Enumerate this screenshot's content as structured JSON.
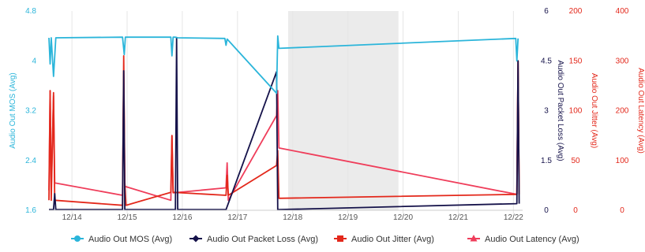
{
  "colors": {
    "mos": "#2bb5da",
    "packet_loss": "#15124a",
    "jitter": "#e3281b",
    "latency": "#ef3d5a",
    "band": "#ebebeb",
    "axis_text": "#555555"
  },
  "chart_data": {
    "type": "line",
    "title": "",
    "xlabel": "",
    "x_ticks": [
      "12/14",
      "12/15",
      "12/16",
      "12/17",
      "12/18",
      "12/19",
      "12/20",
      "12/21",
      "12/22"
    ],
    "x_range": [
      "12/13 14:00",
      "12/22 04:00"
    ],
    "shaded_band": [
      "12/17 22:00",
      "12/19 22:00"
    ],
    "grid": "vertical only",
    "legend_position": "bottom",
    "axes": {
      "mos": {
        "label": "Audio Out MOS (Avg)",
        "side": "left",
        "range": [
          1.6,
          4.8
        ],
        "ticks": [
          "1.6",
          "2.4",
          "3.2",
          "4",
          "4.8"
        ]
      },
      "packet_loss": {
        "label": "Audio Out Packet Loss (Avg)",
        "side": "right",
        "range": [
          0,
          6
        ],
        "ticks": [
          "0",
          "1.5",
          "3",
          "4.5",
          "6"
        ]
      },
      "jitter": {
        "label": "Audio Out Jitter (Avg)",
        "side": "right",
        "range": [
          0,
          200
        ],
        "ticks": [
          "0",
          "50",
          "100",
          "150",
          "200"
        ]
      },
      "latency": {
        "label": "Audio Out Latency (Avg)",
        "side": "right",
        "range": [
          0,
          400
        ],
        "ticks": [
          "0",
          "100",
          "200",
          "300",
          "400"
        ]
      }
    },
    "series": [
      {
        "name": "Audio Out MOS (Avg)",
        "axis": "mos",
        "color_key": "mos",
        "marker": "circle",
        "points": [
          [
            "12/13 14:00",
            4.37
          ],
          [
            "12/13 14:30",
            3.95
          ],
          [
            "12/13 15:00",
            4.37
          ],
          [
            "12/13 16:00",
            3.75
          ],
          [
            "12/13 17:00",
            4.37
          ],
          [
            "12/14 22:00",
            4.38
          ],
          [
            "12/14 22:45",
            4.1
          ],
          [
            "12/14 23:15",
            4.38
          ],
          [
            "12/15 19:00",
            4.38
          ],
          [
            "12/15 19:30",
            4.08
          ],
          [
            "12/15 20:00",
            4.38
          ],
          [
            "12/15 21:00",
            4.38
          ],
          [
            "12/15 22:00",
            4.37
          ],
          [
            "12/16 18:30",
            4.36
          ],
          [
            "12/16 19:00",
            4.25
          ],
          [
            "12/16 19:30",
            4.35
          ],
          [
            "12/17 17:00",
            3.48
          ],
          [
            "12/17 17:30",
            4.4
          ],
          [
            "12/17 18:00",
            4.2
          ],
          [
            "12/22 01:00",
            4.36
          ],
          [
            "12/22 01:30",
            4.0
          ],
          [
            "12/22 02:00",
            4.36
          ]
        ]
      },
      {
        "name": "Audio Out Packet Loss (Avg)",
        "axis": "packet_loss",
        "color_key": "packet_loss",
        "marker": "diamond",
        "points": [
          [
            "12/13 14:00",
            0.02
          ],
          [
            "12/13 16:00",
            0.02
          ],
          [
            "12/13 16:30",
            0.5
          ],
          [
            "12/13 17:00",
            0.02
          ],
          [
            "12/14 22:00",
            0.02
          ],
          [
            "12/14 22:30",
            4.2
          ],
          [
            "12/14 23:00",
            0.02
          ],
          [
            "12/15 21:00",
            0.02
          ],
          [
            "12/15 21:30",
            5.2
          ],
          [
            "12/15 22:00",
            0.02
          ],
          [
            "12/16 19:00",
            0.02
          ],
          [
            "12/17 17:00",
            4.17
          ],
          [
            "12/17 17:30",
            0.02
          ],
          [
            "12/22 01:30",
            0.2
          ],
          [
            "12/22 02:00",
            4.5
          ],
          [
            "12/22 02:30",
            0.2
          ]
        ]
      },
      {
        "name": "Audio Out Jitter (Avg)",
        "axis": "jitter",
        "color_key": "jitter",
        "marker": "square",
        "points": [
          [
            "12/13 14:00",
            10
          ],
          [
            "12/13 14:30",
            120
          ],
          [
            "12/13 15:00",
            10
          ],
          [
            "12/13 16:00",
            118
          ],
          [
            "12/13 16:30",
            10
          ],
          [
            "12/14 22:00",
            5
          ],
          [
            "12/14 22:30",
            155
          ],
          [
            "12/14 23:00",
            28
          ],
          [
            "12/14 23:30",
            5
          ],
          [
            "12/15 19:00",
            18
          ],
          [
            "12/15 19:30",
            75
          ],
          [
            "12/15 20:00",
            18
          ],
          [
            "12/16 19:00",
            15
          ],
          [
            "12/16 19:30",
            35
          ],
          [
            "12/16 20:00",
            15
          ],
          [
            "12/17 17:00",
            45
          ],
          [
            "12/17 17:30",
            60
          ],
          [
            "12/17 18:00",
            12
          ],
          [
            "12/22 01:30",
            16
          ],
          [
            "12/22 02:00",
            150
          ],
          [
            "12/22 02:30",
            16
          ]
        ]
      },
      {
        "name": "Audio Out Latency (Avg)",
        "axis": "latency",
        "color_key": "latency",
        "marker": "triangle",
        "points": [
          [
            "12/13 14:00",
            40
          ],
          [
            "12/13 14:30",
            240
          ],
          [
            "12/13 15:00",
            40
          ],
          [
            "12/13 16:00",
            230
          ],
          [
            "12/13 16:30",
            55
          ],
          [
            "12/14 22:00",
            30
          ],
          [
            "12/14 22:30",
            280
          ],
          [
            "12/14 23:00",
            48
          ],
          [
            "12/15 19:00",
            20
          ],
          [
            "12/15 19:30",
            150
          ],
          [
            "12/15 20:00",
            35
          ],
          [
            "12/16 19:00",
            45
          ],
          [
            "12/16 19:30",
            95
          ],
          [
            "12/16 20:00",
            20
          ],
          [
            "12/17 17:00",
            190
          ],
          [
            "12/17 17:30",
            240
          ],
          [
            "12/17 18:00",
            125
          ],
          [
            "12/22 01:30",
            32
          ],
          [
            "12/22 02:00",
            300
          ],
          [
            "12/22 02:30",
            32
          ]
        ]
      }
    ]
  }
}
